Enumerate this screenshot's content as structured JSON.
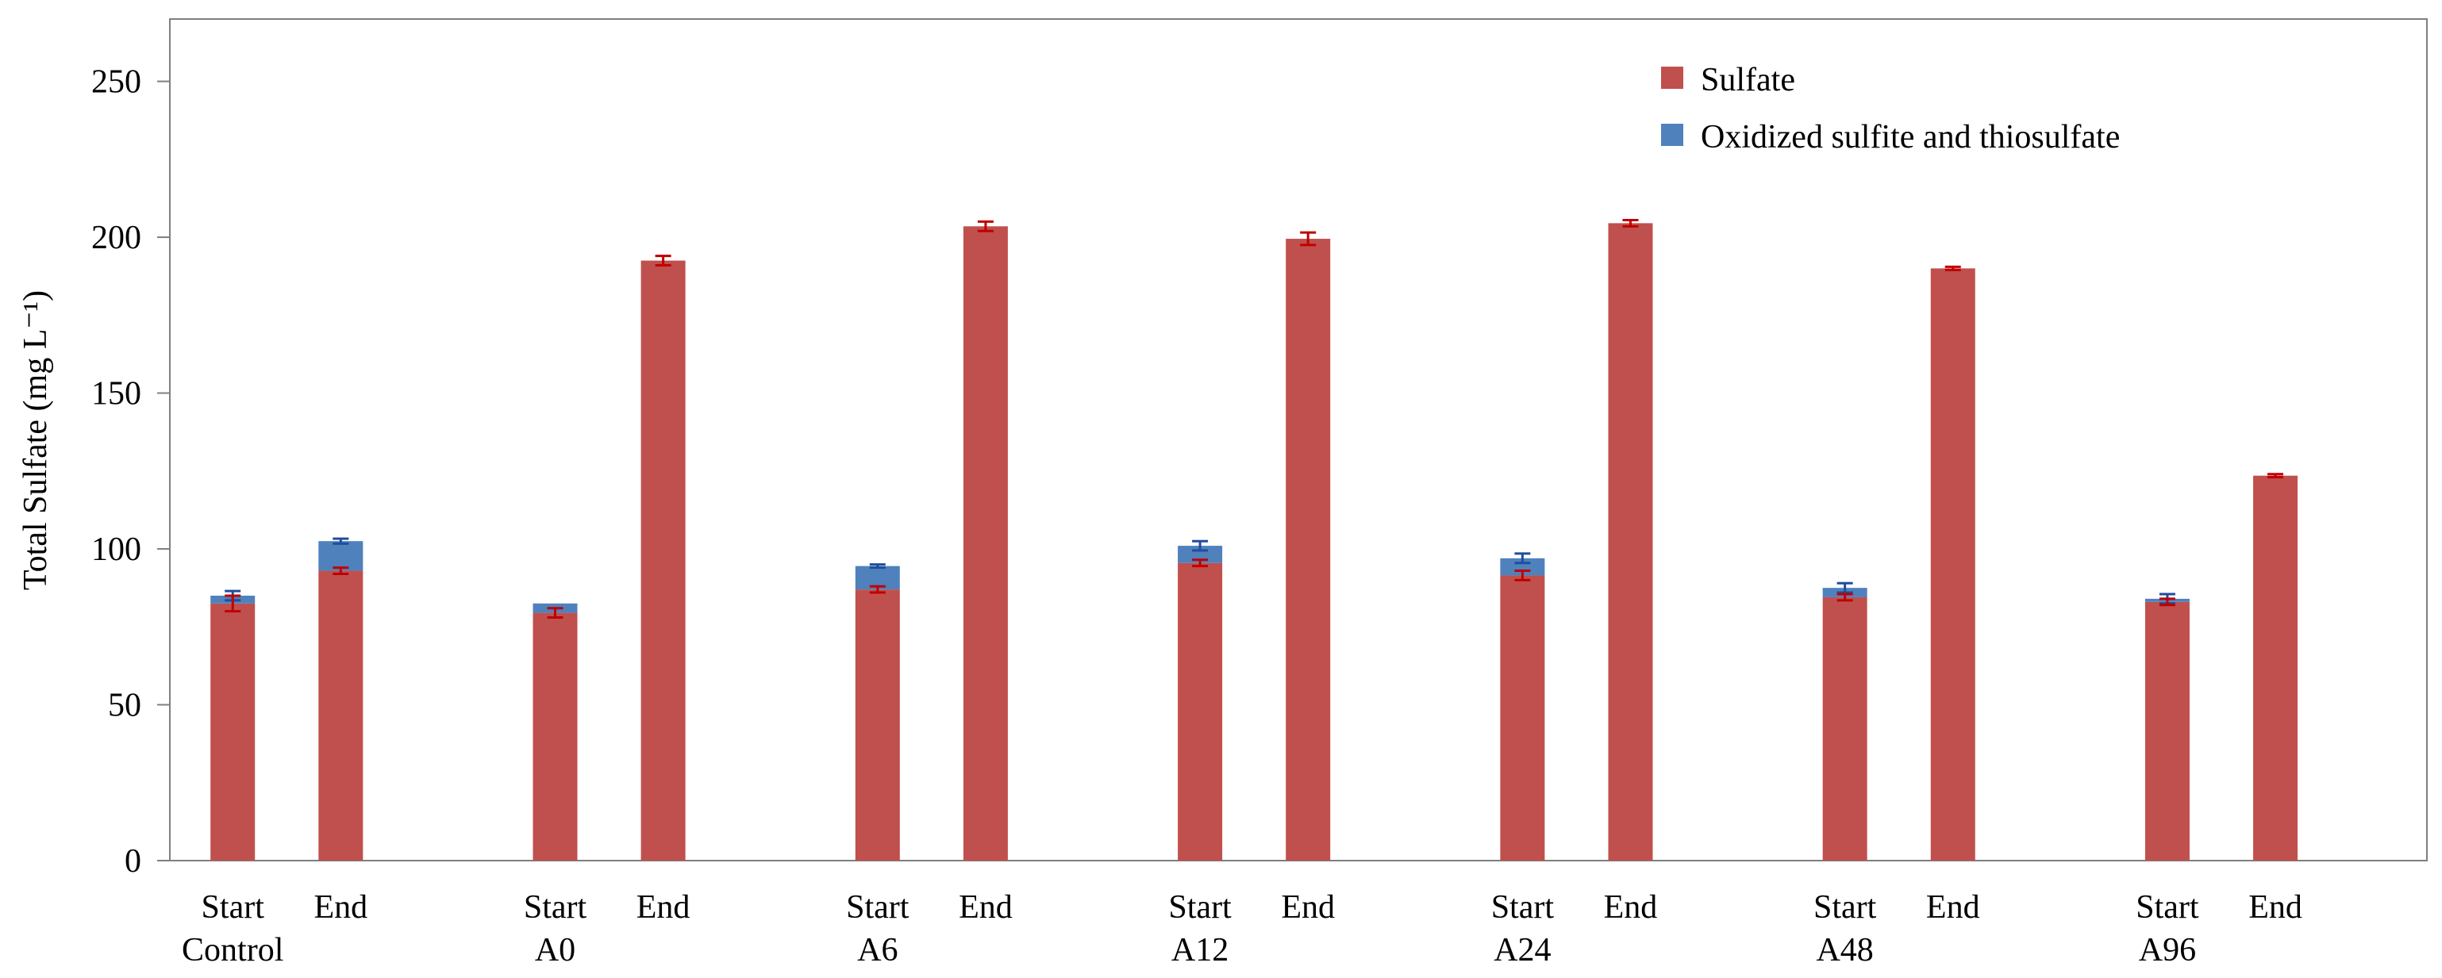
{
  "chart_data": {
    "type": "bar",
    "stacked": true,
    "title": "",
    "ylabel": "Total Sulfate (mg L⁻¹)",
    "xlabel": "",
    "ylim": [
      0,
      270
    ],
    "yticks": [
      0,
      50,
      100,
      150,
      200,
      250
    ],
    "grid": false,
    "legend_position": "top-right",
    "groups": [
      {
        "label": "Control",
        "bars": [
          {
            "label": "Start",
            "sulfate": 82.5,
            "sulfate_err": 2.5,
            "oxidized": 2.5,
            "total_err": 1.5
          },
          {
            "label": "End",
            "sulfate": 93,
            "sulfate_err": 1,
            "oxidized": 9.5,
            "total_err": 0.8
          }
        ]
      },
      {
        "label": "A0",
        "bars": [
          {
            "label": "Start",
            "sulfate": 79.5,
            "sulfate_err": 1.5,
            "oxidized": 3,
            "total_err": 0
          },
          {
            "label": "End",
            "sulfate": 192.5,
            "sulfate_err": 1.5,
            "oxidized": 0,
            "total_err": 0
          }
        ]
      },
      {
        "label": "A6",
        "bars": [
          {
            "label": "Start",
            "sulfate": 87,
            "sulfate_err": 1,
            "oxidized": 7.5,
            "total_err": 0.5
          },
          {
            "label": "End",
            "sulfate": 203.5,
            "sulfate_err": 1.5,
            "oxidized": 0,
            "total_err": 0
          }
        ]
      },
      {
        "label": "A12",
        "bars": [
          {
            "label": "Start",
            "sulfate": 95.5,
            "sulfate_err": 1,
            "oxidized": 5.5,
            "total_err": 1.5
          },
          {
            "label": "End",
            "sulfate": 199.5,
            "sulfate_err": 2,
            "oxidized": 0,
            "total_err": 0
          }
        ]
      },
      {
        "label": "A24",
        "bars": [
          {
            "label": "Start",
            "sulfate": 91.5,
            "sulfate_err": 1.5,
            "oxidized": 5.5,
            "total_err": 1.5
          },
          {
            "label": "End",
            "sulfate": 204.5,
            "sulfate_err": 1,
            "oxidized": 0,
            "total_err": 0
          }
        ]
      },
      {
        "label": "A48",
        "bars": [
          {
            "label": "Start",
            "sulfate": 84.5,
            "sulfate_err": 1,
            "oxidized": 3,
            "total_err": 1.5
          },
          {
            "label": "End",
            "sulfate": 190,
            "sulfate_err": 0.5,
            "oxidized": 0,
            "total_err": 0
          }
        ]
      },
      {
        "label": "A96",
        "bars": [
          {
            "label": "Start",
            "sulfate": 83,
            "sulfate_err": 1,
            "oxidized": 1,
            "total_err": 1.5
          },
          {
            "label": "End",
            "sulfate": 123.5,
            "sulfate_err": 0.5,
            "oxidized": 0,
            "total_err": 0
          }
        ]
      }
    ],
    "series": [
      {
        "name": "Sulfate",
        "key": "sulfate",
        "color": "#c0504d"
      },
      {
        "name": "Oxidized sulfite and thiosulfate",
        "key": "oxidized",
        "color": "#4f81bd"
      }
    ],
    "error_bar_colors": {
      "sulfate": "#c00000",
      "total": "#1f4e9c"
    }
  }
}
